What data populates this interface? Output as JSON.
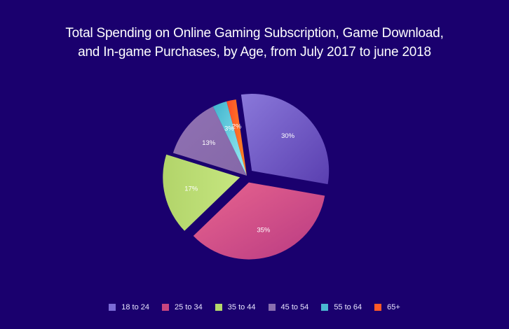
{
  "chart_data": {
    "type": "pie",
    "title": "Total Spending on Online Gaming Subscription, Game Download, and In-game Purchases, by Age, from July 2017 to june 2018",
    "title_lines": [
      "Total Spending on Online Gaming Subscription, Game Download,",
      "and In-game Purchases, by Age, from July 2017 to june 2018"
    ],
    "categories": [
      "18 to 24",
      "25 to 34",
      "35 to 44",
      "45 to 54",
      "55 to 64",
      "65+"
    ],
    "values": [
      30,
      35,
      17,
      13,
      3,
      2
    ],
    "labels": [
      "30%",
      "35%",
      "17%",
      "13%",
      "3%",
      "2%"
    ],
    "colors": [
      "#7b6bd6",
      "#d9548f",
      "#bde078",
      "#8a6fb0",
      "#4fc3d8",
      "#ff5a28"
    ],
    "exploded": [
      true,
      true,
      true,
      false,
      false,
      false
    ],
    "legend_position": "bottom",
    "background": "#1a006e"
  },
  "legend": {
    "items": [
      {
        "label": "18 to 24",
        "color": "#7b6bd6"
      },
      {
        "label": "25 to 34",
        "color": "#c9447f"
      },
      {
        "label": "35 to 44",
        "color": "#b5d96a"
      },
      {
        "label": "45 to 54",
        "color": "#8a6fb0"
      },
      {
        "label": "55 to 64",
        "color": "#4ab8d2"
      },
      {
        "label": "65+",
        "color": "#ff5a28"
      }
    ]
  }
}
